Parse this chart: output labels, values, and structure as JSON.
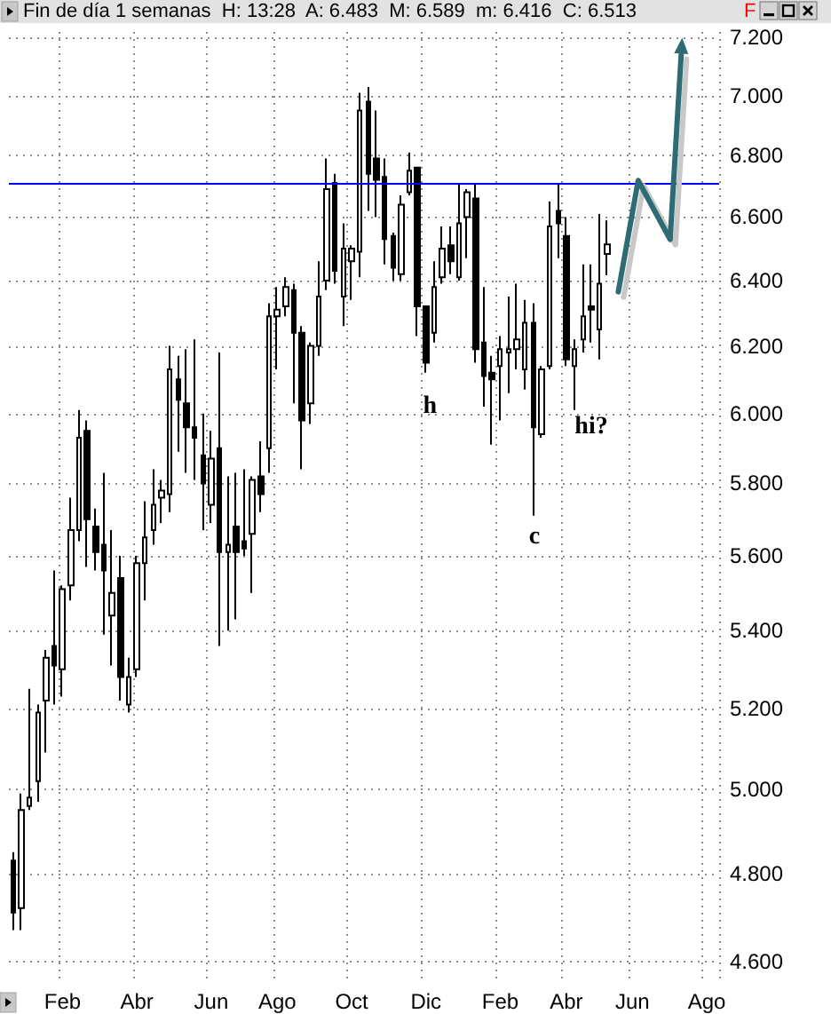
{
  "chart_data": {
    "type": "candlestick",
    "title": "Fin de día 1 semanas  H: 13:28  A: 6.483  M: 6.589  m: 6.416  C: 6.513",
    "subtitle": "F",
    "categories": [
      null,
      null,
      null,
      null,
      null,
      null,
      "Feb",
      null,
      null,
      null,
      null,
      null,
      null,
      null,
      null,
      "Abr",
      null,
      null,
      null,
      null,
      null,
      null,
      null,
      null,
      "Jun",
      null,
      null,
      null,
      null,
      null,
      null,
      null,
      "Ago",
      null,
      null,
      null,
      null,
      null,
      null,
      null,
      null,
      "Oct",
      null,
      null,
      null,
      null,
      null,
      null,
      null,
      null,
      "Dic",
      null,
      null,
      null,
      null,
      null,
      null,
      null,
      null,
      "Feb",
      null,
      null,
      null,
      null,
      null,
      null,
      null,
      "Abr",
      null,
      null,
      null,
      null,
      null,
      null,
      null,
      "Jun",
      null,
      null,
      null,
      null,
      null,
      null,
      null,
      null,
      "Ago",
      null
    ],
    "ohlc": [
      [
        4.83,
        4.85,
        4.67,
        4.71
      ],
      [
        4.72,
        4.99,
        4.67,
        4.95
      ],
      [
        4.96,
        5.25,
        4.95,
        4.98
      ],
      [
        5.02,
        5.21,
        4.97,
        5.19
      ],
      [
        5.22,
        5.35,
        5.09,
        5.33
      ],
      [
        5.36,
        5.56,
        5.21,
        5.31
      ],
      [
        5.3,
        5.52,
        5.23,
        5.51
      ],
      [
        5.52,
        5.76,
        5.48,
        5.67
      ],
      [
        5.67,
        6.01,
        5.64,
        5.93
      ],
      [
        5.95,
        5.98,
        5.57,
        5.7
      ],
      [
        5.68,
        5.73,
        5.56,
        5.61
      ],
      [
        5.63,
        5.83,
        5.39,
        5.56
      ],
      [
        5.44,
        5.67,
        5.31,
        5.5
      ],
      [
        5.54,
        5.6,
        5.22,
        5.28
      ],
      [
        5.21,
        5.33,
        5.19,
        5.28
      ],
      [
        5.3,
        5.6,
        5.28,
        5.58
      ],
      [
        5.58,
        5.75,
        5.48,
        5.65
      ],
      [
        5.67,
        5.84,
        5.63,
        5.74
      ],
      [
        5.76,
        5.81,
        5.69,
        5.78
      ],
      [
        5.77,
        6.2,
        5.72,
        6.13
      ],
      [
        6.1,
        6.17,
        5.89,
        6.04
      ],
      [
        6.03,
        6.19,
        5.83,
        5.96
      ],
      [
        5.96,
        6.22,
        5.81,
        5.93
      ],
      [
        5.88,
        6.0,
        5.67,
        5.8
      ],
      [
        5.74,
        5.95,
        5.69,
        5.87
      ],
      [
        5.9,
        6.18,
        5.36,
        5.61
      ],
      [
        5.61,
        5.82,
        5.4,
        5.63
      ],
      [
        5.68,
        5.83,
        5.43,
        5.61
      ],
      [
        5.64,
        5.84,
        5.6,
        5.62
      ],
      [
        5.66,
        5.82,
        5.5,
        5.81
      ],
      [
        5.82,
        5.92,
        5.72,
        5.77
      ],
      [
        5.9,
        6.33,
        5.83,
        6.29
      ],
      [
        6.29,
        6.38,
        6.13,
        6.31
      ],
      [
        6.32,
        6.41,
        6.29,
        6.38
      ],
      [
        6.37,
        6.39,
        6.03,
        6.24
      ],
      [
        6.24,
        6.26,
        5.84,
        5.98
      ],
      [
        6.03,
        6.21,
        5.97,
        6.2
      ],
      [
        6.2,
        6.46,
        6.17,
        6.35
      ],
      [
        6.4,
        6.79,
        6.37,
        6.69
      ],
      [
        6.71,
        6.74,
        6.39,
        6.43
      ],
      [
        6.35,
        6.58,
        6.26,
        6.5
      ],
      [
        6.46,
        6.51,
        6.34,
        6.5
      ],
      [
        6.49,
        7.01,
        6.41,
        6.95
      ],
      [
        6.98,
        7.03,
        6.62,
        6.74
      ],
      [
        6.79,
        6.95,
        6.6,
        6.72
      ],
      [
        6.73,
        6.79,
        6.45,
        6.53
      ],
      [
        6.54,
        6.55,
        6.4,
        6.44
      ],
      [
        6.42,
        6.67,
        6.4,
        6.64
      ],
      [
        6.68,
        6.81,
        6.67,
        6.75
      ],
      [
        6.76,
        6.76,
        6.23,
        6.32
      ],
      [
        6.32,
        6.32,
        6.12,
        6.15
      ],
      [
        6.24,
        6.46,
        6.21,
        6.38
      ],
      [
        6.41,
        6.57,
        6.39,
        6.5
      ],
      [
        6.51,
        6.57,
        6.42,
        6.46
      ],
      [
        6.41,
        6.71,
        6.4,
        6.58
      ],
      [
        6.6,
        6.69,
        6.47,
        6.68
      ],
      [
        6.66,
        6.71,
        6.15,
        6.19
      ],
      [
        6.21,
        6.38,
        6.02,
        6.11
      ],
      [
        6.12,
        6.17,
        5.91,
        6.1
      ],
      [
        6.14,
        6.23,
        5.98,
        6.19
      ],
      [
        6.18,
        6.35,
        6.06,
        6.19
      ],
      [
        6.19,
        6.39,
        6.13,
        6.22
      ],
      [
        6.13,
        6.34,
        6.07,
        6.27
      ],
      [
        6.27,
        6.33,
        5.71,
        5.96
      ],
      [
        5.94,
        6.14,
        5.93,
        6.13
      ],
      [
        6.14,
        6.65,
        6.13,
        6.57
      ],
      [
        6.62,
        6.71,
        6.47,
        6.58
      ],
      [
        6.54,
        6.6,
        6.14,
        6.16
      ],
      [
        6.14,
        6.22,
        6.01,
        6.19
      ],
      [
        6.22,
        6.45,
        6.18,
        6.29
      ],
      [
        6.32,
        6.45,
        6.21,
        6.31
      ],
      [
        6.25,
        6.61,
        6.16,
        6.39
      ],
      [
        6.483,
        6.589,
        6.416,
        6.513
      ],
      null,
      null,
      null,
      null,
      null,
      null,
      null,
      null,
      null,
      null,
      null,
      null,
      null
    ],
    "ylim": [
      4.55,
      7.22
    ],
    "yticks": [
      {
        "value": 4.6,
        "label": "4.600"
      },
      {
        "value": 4.8,
        "label": "4.800"
      },
      {
        "value": 5.0,
        "label": "5.000"
      },
      {
        "value": 5.2,
        "label": "5.200"
      },
      {
        "value": 5.4,
        "label": "5.400"
      },
      {
        "value": 5.6,
        "label": "5.600"
      },
      {
        "value": 5.8,
        "label": "5.800"
      },
      {
        "value": 6.0,
        "label": "6.000"
      },
      {
        "value": 6.2,
        "label": "6.200"
      },
      {
        "value": 6.4,
        "label": "6.400"
      },
      {
        "value": 6.6,
        "label": "6.600"
      },
      {
        "value": 6.8,
        "label": "6.800"
      },
      {
        "value": 7.0,
        "label": "7.000"
      },
      {
        "value": 7.2,
        "label": "7.200"
      }
    ],
    "log": true,
    "grid": true,
    "ref_lines": [
      {
        "axis": "y",
        "value": 6.71,
        "color": "#0000ff"
      }
    ],
    "annotations": [
      "h",
      "c",
      "hi?"
    ]
  }
}
